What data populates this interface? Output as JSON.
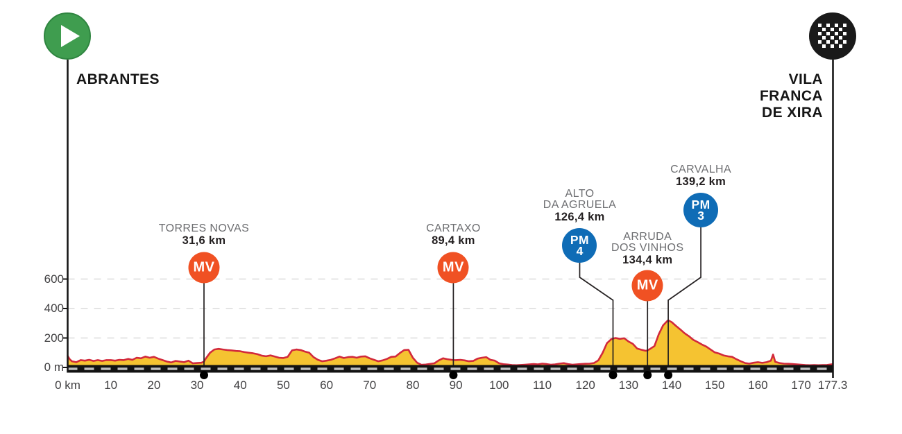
{
  "stage": {
    "start": {
      "label": "ABRANTES"
    },
    "finish": {
      "lines": [
        "VILA",
        "FRANCA",
        "DE XIRA"
      ]
    }
  },
  "markers": [
    {
      "type": "MV",
      "badge": "MV",
      "name_lines": [
        "TORRES NOVAS"
      ],
      "distance": "31,6 km",
      "km": 31.6
    },
    {
      "type": "MV",
      "badge": "MV",
      "name_lines": [
        "CARTAXO"
      ],
      "distance": "89,4 km",
      "km": 89.4
    },
    {
      "type": "PM",
      "badge": "PM",
      "rank": "4",
      "name_lines": [
        "ALTO",
        "DA AGRUELA"
      ],
      "distance": "126,4 km",
      "km": 126.4
    },
    {
      "type": "MV",
      "badge": "MV",
      "name_lines": [
        "ARRUDA",
        "DOS VINHOS"
      ],
      "distance": "134,4 km",
      "km": 134.4
    },
    {
      "type": "PM",
      "badge": "PM",
      "rank": "3",
      "name_lines": [
        "CARVALHA"
      ],
      "distance": "139,2 km",
      "km": 139.2
    }
  ],
  "axes": {
    "x_ticks": [
      {
        "km": 0,
        "label": "0 km"
      },
      {
        "km": 10,
        "label": "10"
      },
      {
        "km": 20,
        "label": "20"
      },
      {
        "km": 30,
        "label": "30"
      },
      {
        "km": 40,
        "label": "40"
      },
      {
        "km": 50,
        "label": "50"
      },
      {
        "km": 60,
        "label": "60"
      },
      {
        "km": 70,
        "label": "70"
      },
      {
        "km": 80,
        "label": "80"
      },
      {
        "km": 90,
        "label": "90"
      },
      {
        "km": 100,
        "label": "100"
      },
      {
        "km": 110,
        "label": "110"
      },
      {
        "km": 120,
        "label": "120"
      },
      {
        "km": 130,
        "label": "130"
      },
      {
        "km": 140,
        "label": "140"
      },
      {
        "km": 150,
        "label": "150"
      },
      {
        "km": 160,
        "label": "160"
      },
      {
        "km": 170,
        "label": "170"
      },
      {
        "km": 177.3,
        "label": "177.3"
      }
    ],
    "y_ticks": [
      {
        "m": 0,
        "label": "0 m"
      },
      {
        "m": 200,
        "label": "200"
      },
      {
        "m": 400,
        "label": "400"
      },
      {
        "m": 600,
        "label": "600"
      }
    ]
  },
  "colors": {
    "profile_fill": "#F5C331",
    "profile_line": "#D2293B",
    "mv_orange": "#F05123",
    "pm_blue": "#0F6CB6",
    "start_green": "#3F9D4F",
    "finish_black": "#1A1A1A",
    "grid": "#DBDBDB",
    "road": "#121212",
    "road_dash": "#BDBDBD",
    "name_gray": "#6D6E71",
    "text_black": "#231F20",
    "connector": "#231F20"
  },
  "chart_data": {
    "type": "area",
    "title": "",
    "xlabel": "km",
    "ylabel": "m",
    "x_range": [
      0,
      177.3
    ],
    "y_range": [
      0,
      650
    ],
    "grid_levels_m": [
      200,
      400,
      600
    ],
    "start_name": "ABRANTES",
    "finish_name": "VILA FRANCA DE XIRA",
    "total_km": 177.3,
    "profile": [
      [
        0,
        78
      ],
      [
        0.5,
        55
      ],
      [
        1,
        42
      ],
      [
        2,
        36
      ],
      [
        3,
        50
      ],
      [
        4,
        46
      ],
      [
        5,
        52
      ],
      [
        6,
        44
      ],
      [
        7,
        50
      ],
      [
        8,
        44
      ],
      [
        9,
        50
      ],
      [
        10,
        50
      ],
      [
        11,
        46
      ],
      [
        12,
        52
      ],
      [
        13,
        50
      ],
      [
        14,
        58
      ],
      [
        15,
        52
      ],
      [
        16,
        66
      ],
      [
        17,
        62
      ],
      [
        18,
        74
      ],
      [
        19,
        66
      ],
      [
        20,
        72
      ],
      [
        21,
        60
      ],
      [
        22,
        50
      ],
      [
        23,
        40
      ],
      [
        24,
        34
      ],
      [
        25,
        44
      ],
      [
        26,
        40
      ],
      [
        27,
        36
      ],
      [
        28,
        46
      ],
      [
        29,
        28
      ],
      [
        30,
        30
      ],
      [
        31,
        32
      ],
      [
        31.6,
        40
      ],
      [
        32,
        60
      ],
      [
        33,
        100
      ],
      [
        34,
        122
      ],
      [
        35,
        126
      ],
      [
        36,
        122
      ],
      [
        37,
        118
      ],
      [
        38,
        116
      ],
      [
        39,
        112
      ],
      [
        40,
        110
      ],
      [
        41,
        104
      ],
      [
        42,
        100
      ],
      [
        43,
        96
      ],
      [
        44,
        90
      ],
      [
        45,
        80
      ],
      [
        46,
        76
      ],
      [
        47,
        82
      ],
      [
        48,
        74
      ],
      [
        49,
        66
      ],
      [
        50,
        64
      ],
      [
        51,
        72
      ],
      [
        52,
        116
      ],
      [
        53,
        122
      ],
      [
        54,
        118
      ],
      [
        55,
        108
      ],
      [
        56,
        100
      ],
      [
        57,
        70
      ],
      [
        58,
        52
      ],
      [
        59,
        42
      ],
      [
        60,
        46
      ],
      [
        61,
        52
      ],
      [
        62,
        62
      ],
      [
        63,
        74
      ],
      [
        64,
        64
      ],
      [
        65,
        70
      ],
      [
        66,
        72
      ],
      [
        67,
        66
      ],
      [
        68,
        74
      ],
      [
        69,
        76
      ],
      [
        70,
        62
      ],
      [
        71,
        52
      ],
      [
        72,
        42
      ],
      [
        73,
        48
      ],
      [
        74,
        58
      ],
      [
        75,
        72
      ],
      [
        76,
        74
      ],
      [
        77,
        98
      ],
      [
        78,
        118
      ],
      [
        79,
        120
      ],
      [
        80,
        66
      ],
      [
        81,
        32
      ],
      [
        82,
        18
      ],
      [
        83,
        20
      ],
      [
        84,
        24
      ],
      [
        85,
        28
      ],
      [
        86,
        48
      ],
      [
        87,
        62
      ],
      [
        88,
        56
      ],
      [
        89,
        52
      ],
      [
        89.4,
        50
      ],
      [
        90,
        50
      ],
      [
        91,
        52
      ],
      [
        92,
        48
      ],
      [
        93,
        42
      ],
      [
        94,
        44
      ],
      [
        95,
        60
      ],
      [
        96,
        66
      ],
      [
        97,
        70
      ],
      [
        98,
        52
      ],
      [
        99,
        46
      ],
      [
        100,
        28
      ],
      [
        101,
        22
      ],
      [
        102,
        20
      ],
      [
        103,
        16
      ],
      [
        104,
        15
      ],
      [
        105,
        17
      ],
      [
        106,
        19
      ],
      [
        107,
        21
      ],
      [
        108,
        23
      ],
      [
        109,
        21
      ],
      [
        110,
        26
      ],
      [
        111,
        23
      ],
      [
        112,
        19
      ],
      [
        113,
        21
      ],
      [
        114,
        26
      ],
      [
        115,
        29
      ],
      [
        116,
        23
      ],
      [
        117,
        19
      ],
      [
        118,
        21
      ],
      [
        119,
        23
      ],
      [
        120,
        25
      ],
      [
        121,
        26
      ],
      [
        122,
        30
      ],
      [
        123,
        48
      ],
      [
        124,
        100
      ],
      [
        125,
        165
      ],
      [
        126,
        192
      ],
      [
        126.4,
        196
      ],
      [
        127,
        200
      ],
      [
        128,
        194
      ],
      [
        129,
        198
      ],
      [
        130,
        176
      ],
      [
        131,
        160
      ],
      [
        132,
        128
      ],
      [
        133,
        120
      ],
      [
        134,
        113
      ],
      [
        134.4,
        116
      ],
      [
        135,
        126
      ],
      [
        136,
        145
      ],
      [
        137,
        225
      ],
      [
        138,
        285
      ],
      [
        139,
        316
      ],
      [
        139.2,
        320
      ],
      [
        140,
        308
      ],
      [
        141,
        282
      ],
      [
        142,
        258
      ],
      [
        143,
        232
      ],
      [
        144,
        212
      ],
      [
        145,
        188
      ],
      [
        146,
        172
      ],
      [
        147,
        156
      ],
      [
        148,
        142
      ],
      [
        149,
        122
      ],
      [
        150,
        102
      ],
      [
        151,
        94
      ],
      [
        152,
        82
      ],
      [
        153,
        76
      ],
      [
        154,
        72
      ],
      [
        155,
        56
      ],
      [
        156,
        42
      ],
      [
        157,
        30
      ],
      [
        158,
        26
      ],
      [
        159,
        32
      ],
      [
        160,
        36
      ],
      [
        161,
        31
      ],
      [
        162,
        36
      ],
      [
        163,
        46
      ],
      [
        163.5,
        88
      ],
      [
        164,
        38
      ],
      [
        165,
        30
      ],
      [
        166,
        26
      ],
      [
        167,
        25
      ],
      [
        168,
        23
      ],
      [
        169,
        21
      ],
      [
        170,
        19
      ],
      [
        171,
        16
      ],
      [
        172,
        15
      ],
      [
        173,
        16
      ],
      [
        174,
        15
      ],
      [
        175,
        16
      ],
      [
        176,
        17
      ],
      [
        177.3,
        22
      ]
    ]
  }
}
